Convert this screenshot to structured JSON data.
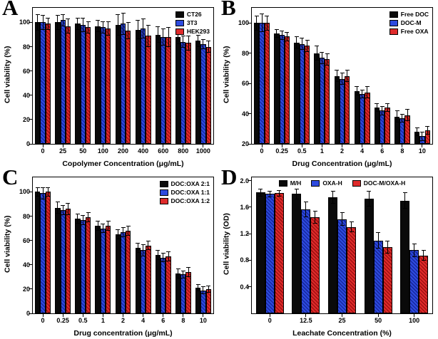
{
  "figure": {
    "background": "#ffffff",
    "bar_border": "#000000",
    "error_bar_color": "#000000"
  },
  "colors": {
    "black": "#0a0a0a",
    "blue": "#2e4bdf",
    "blue_dark": "#16289f",
    "red": "#df2b2b",
    "red_dark": "#9f1111"
  },
  "chart_data": [
    {
      "type": "bar",
      "panel_label": "A",
      "xlabel": "Copolymer Concentration (μg/mL)",
      "ylabel": "Cell viability (%)",
      "categories": [
        "0",
        "25",
        "50",
        "100",
        "200",
        "400",
        "600",
        "800",
        "1000"
      ],
      "ylim": [
        0,
        112
      ],
      "yticks": [
        0,
        20,
        40,
        60,
        80,
        100
      ],
      "ytick_decimals": 0,
      "grid": false,
      "legend_position": "top-right",
      "series": [
        {
          "name": "CT26",
          "color": "#0a0a0a",
          "stripe": "#0a0a0a",
          "values": [
            100,
            100,
            99,
            97,
            98,
            94,
            90,
            88,
            85
          ],
          "errors": [
            7,
            6,
            5,
            5,
            9,
            8,
            7,
            6,
            5
          ]
        },
        {
          "name": "3T3",
          "color": "#2e4bdf",
          "stripe": "#16289f",
          "values": [
            100,
            102,
            98,
            96,
            99,
            95,
            88,
            84,
            82
          ],
          "errors": [
            6,
            5,
            6,
            5,
            9,
            8,
            7,
            5,
            4
          ]
        },
        {
          "name": "HEK293",
          "color": "#df2b2b",
          "stripe": "#9f1111",
          "values": [
            99,
            97,
            96,
            95,
            93,
            89,
            88,
            83,
            80
          ],
          "errors": [
            5,
            6,
            5,
            6,
            7,
            9,
            8,
            6,
            5
          ]
        }
      ]
    },
    {
      "type": "bar",
      "panel_label": "B",
      "xlabel": "Drug Concentration (μg/mL)",
      "ylabel": "Cell viability (%)",
      "categories": [
        "0",
        "0.25",
        "0.5",
        "1",
        "2",
        "4",
        "6",
        "8",
        "10"
      ],
      "ylim": [
        20,
        110
      ],
      "yticks": [
        20,
        40,
        60,
        80,
        100
      ],
      "ytick_decimals": 0,
      "grid": false,
      "legend_position": "top-right",
      "series": [
        {
          "name": "Free DOC",
          "color": "#0a0a0a",
          "stripe": "#0a0a0a",
          "values": [
            100,
            93,
            87,
            80,
            65,
            55,
            44,
            38,
            28
          ],
          "errors": [
            5,
            3,
            4,
            5,
            4,
            3,
            3,
            4,
            3
          ]
        },
        {
          "name": "DOC-M",
          "color": "#2e4bdf",
          "stripe": "#16289f",
          "values": [
            100,
            92,
            86,
            77,
            63,
            53,
            42,
            37,
            25
          ],
          "errors": [
            6,
            3,
            4,
            4,
            4,
            3,
            3,
            3,
            3
          ]
        },
        {
          "name": "Free OXA",
          "color": "#df2b2b",
          "stripe": "#9f1111",
          "values": [
            100,
            91,
            85,
            76,
            65,
            54,
            44,
            39,
            29
          ],
          "errors": [
            5,
            3,
            4,
            4,
            4,
            4,
            3,
            4,
            3
          ]
        }
      ]
    },
    {
      "type": "bar",
      "panel_label": "C",
      "xlabel": "Drug concentration (μg/mL)",
      "ylabel": "Cell viability (%)",
      "categories": [
        "0",
        "0.25",
        "0.5",
        "1",
        "2",
        "4",
        "6",
        "8",
        "10"
      ],
      "ylim": [
        0,
        112
      ],
      "yticks": [
        0,
        20,
        40,
        60,
        80,
        100
      ],
      "ytick_decimals": 0,
      "grid": false,
      "legend_position": "top-right",
      "series": [
        {
          "name": "DOC:OXA 2:1",
          "color": "#0a0a0a",
          "stripe": "#0a0a0a",
          "values": [
            100,
            87,
            78,
            72,
            65,
            54,
            48,
            33,
            21
          ],
          "errors": [
            4,
            5,
            4,
            4,
            4,
            4,
            4,
            4,
            3
          ]
        },
        {
          "name": "DOC:OXA 1:1",
          "color": "#2e4bdf",
          "stripe": "#16289f",
          "values": [
            99,
            85,
            77,
            70,
            67,
            52,
            46,
            32,
            19
          ],
          "errors": [
            5,
            4,
            4,
            4,
            4,
            5,
            4,
            3,
            3
          ]
        },
        {
          "name": "DOC:OXA 1:2",
          "color": "#df2b2b",
          "stripe": "#9f1111",
          "values": [
            100,
            86,
            79,
            72,
            68,
            56,
            47,
            34,
            20
          ],
          "errors": [
            4,
            5,
            4,
            4,
            4,
            4,
            4,
            4,
            3
          ]
        }
      ]
    },
    {
      "type": "bar",
      "panel_label": "D",
      "xlabel": "Leachate Concentration (%)",
      "ylabel": "Cell viability (OD)",
      "categories": [
        "0",
        "12.5",
        "25",
        "50",
        "100"
      ],
      "ylim": [
        0,
        2.05
      ],
      "yticks": [
        0.4,
        0.8,
        1.2,
        1.6,
        2.0
      ],
      "ytick_decimals": 1,
      "grid": false,
      "legend_position": "top-horizontal",
      "series": [
        {
          "name": "M/H",
          "color": "#0a0a0a",
          "stripe": "#0a0a0a",
          "values": [
            1.82,
            1.8,
            1.75,
            1.73,
            1.7
          ],
          "errors": [
            0.06,
            0.08,
            0.1,
            0.12,
            0.12
          ]
        },
        {
          "name": "OXA-H",
          "color": "#2e4bdf",
          "stripe": "#16289f",
          "values": [
            1.8,
            1.57,
            1.42,
            1.1,
            0.95
          ],
          "errors": [
            0.05,
            0.12,
            0.1,
            0.12,
            0.1
          ]
        },
        {
          "name": "DOC-M/OXA-H",
          "color": "#df2b2b",
          "stripe": "#9f1111",
          "values": [
            1.81,
            1.45,
            1.3,
            1.0,
            0.87
          ],
          "errors": [
            0.05,
            0.1,
            0.08,
            0.1,
            0.08
          ]
        }
      ]
    }
  ]
}
